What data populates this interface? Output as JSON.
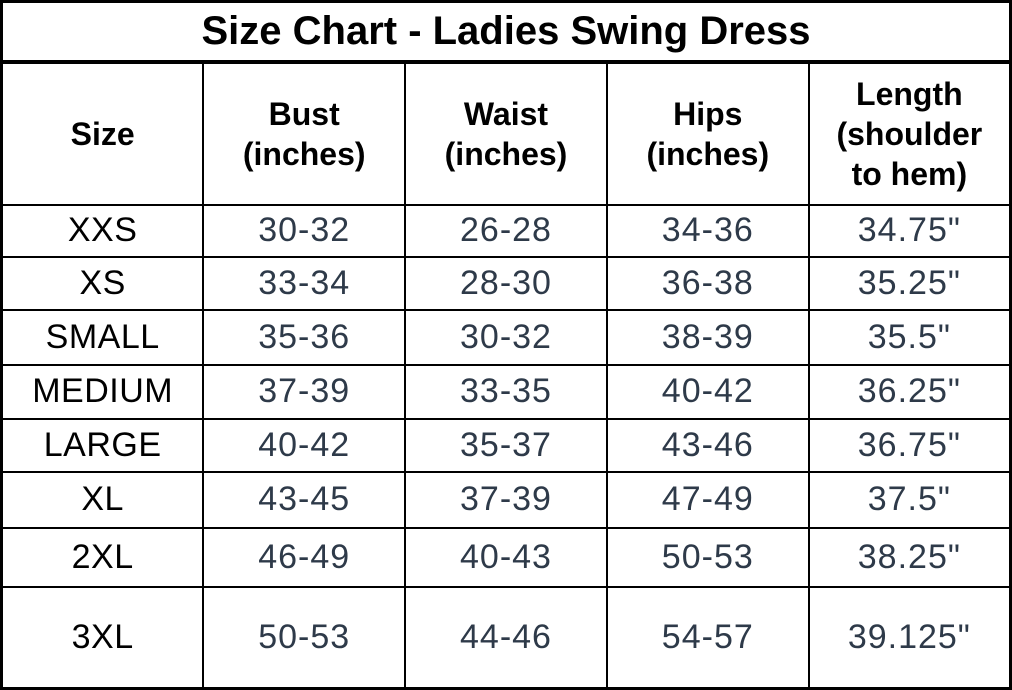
{
  "chart_data": {
    "type": "table",
    "title": "Size Chart - Ladies Swing Dress",
    "columns": [
      "Size",
      "Bust (inches)",
      "Waist (inches)",
      "Hips (inches)",
      "Length (shoulder to hem)"
    ],
    "rows": [
      [
        "XXS",
        "30-32",
        "26-28",
        "34-36",
        "34.75\""
      ],
      [
        "XS",
        "33-34",
        "28-30",
        "36-38",
        "35.25\""
      ],
      [
        "SMALL",
        "35-36",
        "30-32",
        "38-39",
        "35.5\""
      ],
      [
        "MEDIUM",
        "37-39",
        "33-35",
        "40-42",
        "36.25\""
      ],
      [
        "LARGE",
        "40-42",
        "35-37",
        "43-46",
        "36.75\""
      ],
      [
        "XL",
        "43-45",
        "37-39",
        "47-49",
        "37.5\""
      ],
      [
        "2XL",
        "46-49",
        "40-43",
        "50-53",
        "38.25\""
      ],
      [
        "3XL",
        "50-53",
        "44-46",
        "54-57",
        "39.125\""
      ]
    ]
  },
  "colors": {
    "border": "#000000",
    "heading_text": "#000000",
    "value_text": "#2e3a49",
    "background": "#ffffff"
  }
}
